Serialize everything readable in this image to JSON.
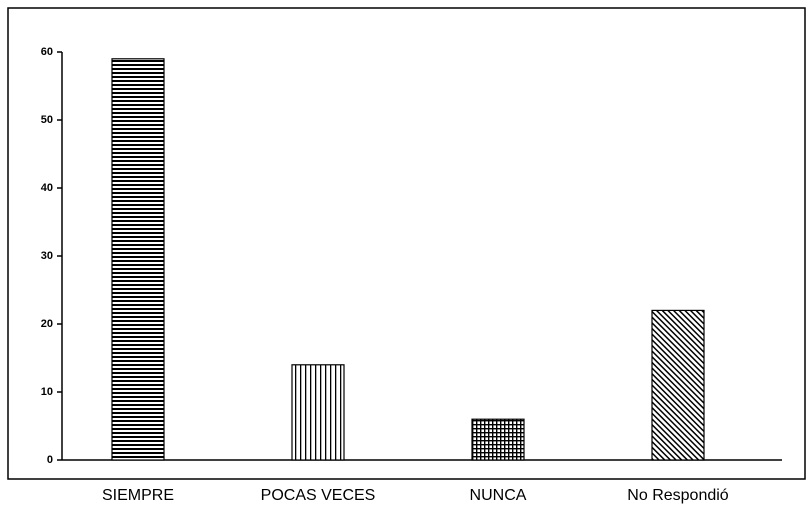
{
  "chart_data": {
    "type": "bar",
    "categories": [
      "SIEMPRE",
      "POCAS VECES",
      "NUNCA",
      "No Respondió"
    ],
    "values": [
      59,
      14,
      6,
      22
    ],
    "ylim": [
      0,
      60
    ],
    "yticks": [
      0,
      10,
      20,
      30,
      40,
      50,
      60
    ]
  }
}
